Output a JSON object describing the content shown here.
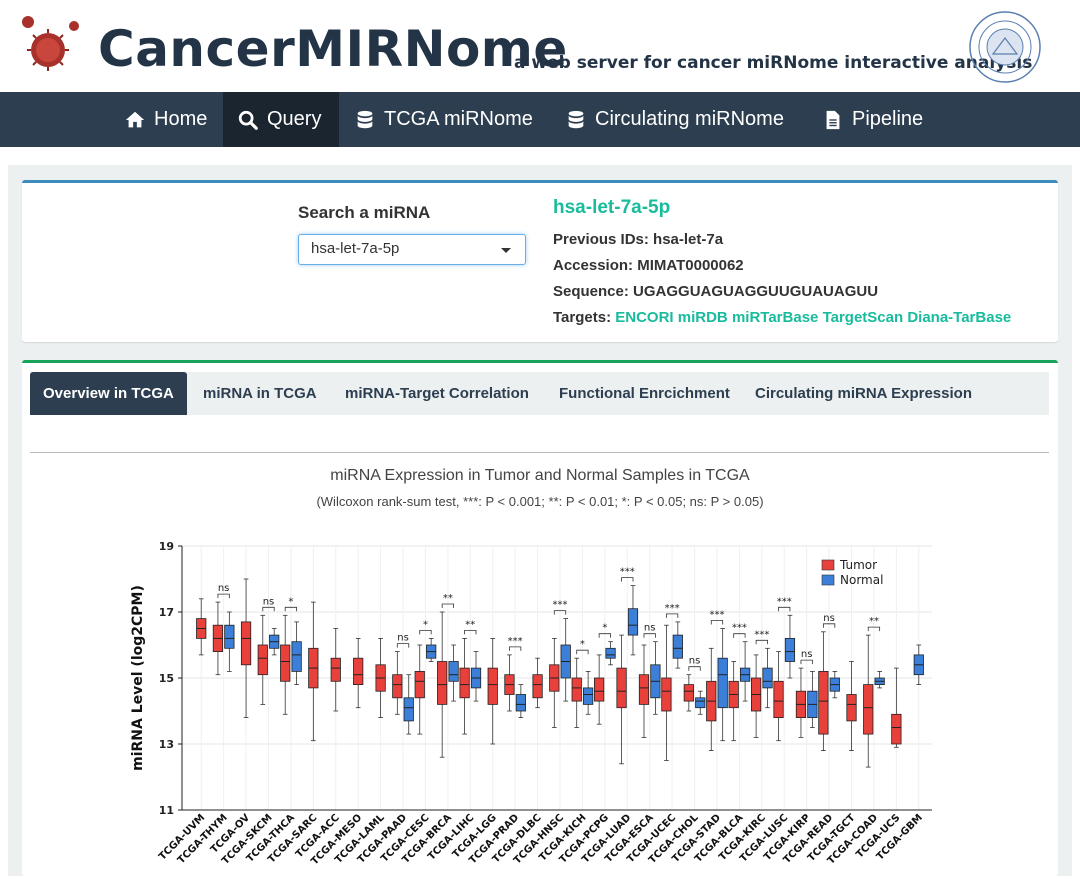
{
  "header": {
    "title": "CancerMIRNome",
    "tagline": "a web server for cancer miRNome interactive analysis"
  },
  "nav": {
    "items": [
      {
        "label": "Home",
        "icon": "home-icon"
      },
      {
        "label": "Query",
        "icon": "search-icon",
        "active": true
      },
      {
        "label": "TCGA miRNome",
        "icon": "database-icon"
      },
      {
        "label": "Circulating miRNome",
        "icon": "database-icon"
      },
      {
        "label": "Pipeline",
        "icon": "file-icon"
      }
    ]
  },
  "search": {
    "label": "Search a miRNA",
    "selected": "hsa-let-7a-5p"
  },
  "mirna": {
    "name": "hsa-let-7a-5p",
    "previous_ids_label": "Previous IDs:",
    "previous_ids": "hsa-let-7a",
    "accession_label": "Accession:",
    "accession": "MIMAT0000062",
    "sequence_label": "Sequence:",
    "sequence": "UGAGGUAGUAGGUUGUAUAGUU",
    "targets_label": "Targets:",
    "targets": [
      "ENCORI",
      "miRDB",
      "miRTarBase",
      "TargetScan",
      "Diana-TarBase"
    ]
  },
  "tabs": [
    "Overview in TCGA",
    "miRNA in TCGA",
    "miRNA-Target Correlation",
    "Functional Enrcichment",
    "Circulating miRNA Expression"
  ],
  "chart_data": {
    "type": "boxplot",
    "title": "miRNA Expression in Tumor and Normal Samples in TCGA",
    "subtitle": "(Wilcoxon rank-sum test, ***: P < 0.001; **: P < 0.01; *: P < 0.05; ns: P > 0.05)",
    "ylabel": "miRNA Level (log2CPM)",
    "ylim": [
      11,
      19
    ],
    "yticks": [
      11,
      13,
      15,
      17,
      19
    ],
    "legend": [
      "Tumor",
      "Normal"
    ],
    "colors": {
      "Tumor": "#e8413c",
      "Normal": "#3b7fd9"
    },
    "categories": [
      {
        "name": "TCGA-UVM",
        "tumor": [
          15.7,
          16.2,
          16.5,
          16.8,
          17.4
        ],
        "normal": null,
        "sig": null
      },
      {
        "name": "TCGA-THYM",
        "tumor": [
          15.1,
          15.8,
          16.2,
          16.6,
          17.3
        ],
        "normal": [
          15.2,
          15.9,
          16.2,
          16.6,
          17.0
        ],
        "sig": "ns"
      },
      {
        "name": "TCGA-OV",
        "tumor": [
          13.8,
          15.4,
          16.2,
          16.7,
          18.0
        ],
        "normal": null,
        "sig": null
      },
      {
        "name": "TCGA-SKCM",
        "tumor": [
          14.2,
          15.1,
          15.6,
          16.0,
          16.9
        ],
        "normal": [
          15.7,
          15.9,
          16.1,
          16.3,
          16.5
        ],
        "sig": "ns"
      },
      {
        "name": "TCGA-THCA",
        "tumor": [
          13.9,
          14.9,
          15.5,
          16.0,
          16.9
        ],
        "normal": [
          14.8,
          15.2,
          15.7,
          16.1,
          16.7
        ],
        "sig": "*"
      },
      {
        "name": "TCGA-SARC",
        "tumor": [
          13.1,
          14.7,
          15.3,
          15.9,
          17.3
        ],
        "normal": null,
        "sig": null
      },
      {
        "name": "TCGA-ACC",
        "tumor": [
          14.0,
          14.9,
          15.3,
          15.6,
          16.5
        ],
        "normal": null,
        "sig": null
      },
      {
        "name": "TCGA-MESO",
        "tumor": [
          14.1,
          14.8,
          15.1,
          15.6,
          16.2
        ],
        "normal": null,
        "sig": null
      },
      {
        "name": "TCGA-LAML",
        "tumor": [
          13.8,
          14.6,
          15.0,
          15.4,
          16.2
        ],
        "normal": null,
        "sig": null
      },
      {
        "name": "TCGA-PAAD",
        "tumor": [
          13.9,
          14.4,
          14.8,
          15.1,
          15.8
        ],
        "normal": [
          13.3,
          13.7,
          14.1,
          14.4,
          15.1
        ],
        "sig": "ns"
      },
      {
        "name": "TCGA-CESC",
        "tumor": [
          13.3,
          14.4,
          14.9,
          15.2,
          16.0
        ],
        "normal": [
          15.5,
          15.6,
          15.8,
          16.0,
          16.2
        ],
        "sig": "*"
      },
      {
        "name": "TCGA-BRCA",
        "tumor": [
          12.6,
          14.2,
          14.8,
          15.5,
          17.0
        ],
        "normal": [
          14.3,
          14.9,
          15.1,
          15.5,
          16.0
        ],
        "sig": "**"
      },
      {
        "name": "TCGA-LIHC",
        "tumor": [
          13.3,
          14.4,
          14.8,
          15.3,
          16.2
        ],
        "normal": [
          14.3,
          14.7,
          15.0,
          15.3,
          15.8
        ],
        "sig": "**"
      },
      {
        "name": "TCGA-LGG",
        "tumor": [
          13.0,
          14.2,
          14.8,
          15.3,
          16.2
        ],
        "normal": null,
        "sig": null
      },
      {
        "name": "TCGA-PRAD",
        "tumor": [
          14.0,
          14.5,
          14.8,
          15.1,
          15.7
        ],
        "normal": [
          13.8,
          14.0,
          14.2,
          14.5,
          14.8
        ],
        "sig": "***"
      },
      {
        "name": "TCGA-DLBC",
        "tumor": [
          14.1,
          14.4,
          14.8,
          15.1,
          15.6
        ],
        "normal": null,
        "sig": null
      },
      {
        "name": "TCGA-HNSC",
        "tumor": [
          13.5,
          14.6,
          15.0,
          15.4,
          16.2
        ],
        "normal": [
          14.3,
          15.0,
          15.5,
          16.0,
          16.8
        ],
        "sig": "***"
      },
      {
        "name": "TCGA-KICH",
        "tumor": [
          13.5,
          14.3,
          14.7,
          15.0,
          15.6
        ],
        "normal": [
          13.9,
          14.2,
          14.5,
          14.7,
          15.2
        ],
        "sig": "*"
      },
      {
        "name": "TCGA-PCPG",
        "tumor": [
          13.6,
          14.3,
          14.6,
          15.0,
          15.7
        ],
        "normal": [
          15.4,
          15.6,
          15.7,
          15.9,
          16.1
        ],
        "sig": "*"
      },
      {
        "name": "TCGA-LUAD",
        "tumor": [
          12.4,
          14.1,
          14.6,
          15.3,
          16.3
        ],
        "normal": [
          15.7,
          16.3,
          16.6,
          17.1,
          17.8
        ],
        "sig": "***"
      },
      {
        "name": "TCGA-ESCA",
        "tumor": [
          13.2,
          14.2,
          14.7,
          15.1,
          16.0
        ],
        "normal": [
          13.9,
          14.4,
          14.9,
          15.4,
          16.1
        ],
        "sig": "ns"
      },
      {
        "name": "TCGA-UCEC",
        "tumor": [
          12.5,
          14.0,
          14.6,
          15.0,
          16.6
        ],
        "normal": [
          15.3,
          15.6,
          15.9,
          16.3,
          16.7
        ],
        "sig": "***"
      },
      {
        "name": "TCGA-CHOL",
        "tumor": [
          14.0,
          14.3,
          14.6,
          14.8,
          15.1
        ],
        "normal": [
          13.9,
          14.1,
          14.3,
          14.4,
          14.6
        ],
        "sig": "ns"
      },
      {
        "name": "TCGA-STAD",
        "tumor": [
          12.8,
          13.7,
          14.3,
          14.9,
          15.9
        ],
        "normal": [
          13.1,
          14.1,
          15.1,
          15.6,
          16.5
        ],
        "sig": "***"
      },
      {
        "name": "TCGA-BLCA",
        "tumor": [
          13.1,
          14.1,
          14.5,
          14.9,
          15.5
        ],
        "normal": [
          14.3,
          14.9,
          15.1,
          15.3,
          16.1
        ],
        "sig": "***"
      },
      {
        "name": "TCGA-KIRC",
        "tumor": [
          13.2,
          14.0,
          14.5,
          15.0,
          15.7
        ],
        "normal": [
          14.1,
          14.7,
          14.9,
          15.3,
          15.9
        ],
        "sig": "***"
      },
      {
        "name": "TCGA-LUSC",
        "tumor": [
          13.1,
          13.8,
          14.3,
          14.9,
          15.8
        ],
        "normal": [
          15.0,
          15.5,
          15.8,
          16.2,
          16.9
        ],
        "sig": "***"
      },
      {
        "name": "TCGA-KIRP",
        "tumor": [
          13.2,
          13.8,
          14.2,
          14.6,
          15.3
        ],
        "normal": [
          13.5,
          13.8,
          14.2,
          14.6,
          15.2
        ],
        "sig": "ns"
      },
      {
        "name": "TCGA-READ",
        "tumor": [
          12.8,
          13.3,
          14.3,
          15.2,
          16.4
        ],
        "normal": [
          14.4,
          14.6,
          14.8,
          15.0,
          15.2
        ],
        "sig": "ns"
      },
      {
        "name": "TCGA-TGCT",
        "tumor": [
          12.8,
          13.7,
          14.2,
          14.5,
          15.5
        ],
        "normal": null,
        "sig": null
      },
      {
        "name": "TCGA-COAD",
        "tumor": [
          12.3,
          13.3,
          14.1,
          14.8,
          16.3
        ],
        "normal": [
          14.7,
          14.8,
          14.9,
          15.0,
          15.2
        ],
        "sig": "**"
      },
      {
        "name": "TCGA-UCS",
        "tumor": [
          12.9,
          13.0,
          13.5,
          13.9,
          15.3
        ],
        "normal": null,
        "sig": null
      },
      {
        "name": "TCGA-GBM",
        "tumor": null,
        "normal": [
          14.8,
          15.1,
          15.4,
          15.7,
          16.0
        ],
        "sig": null
      }
    ]
  }
}
